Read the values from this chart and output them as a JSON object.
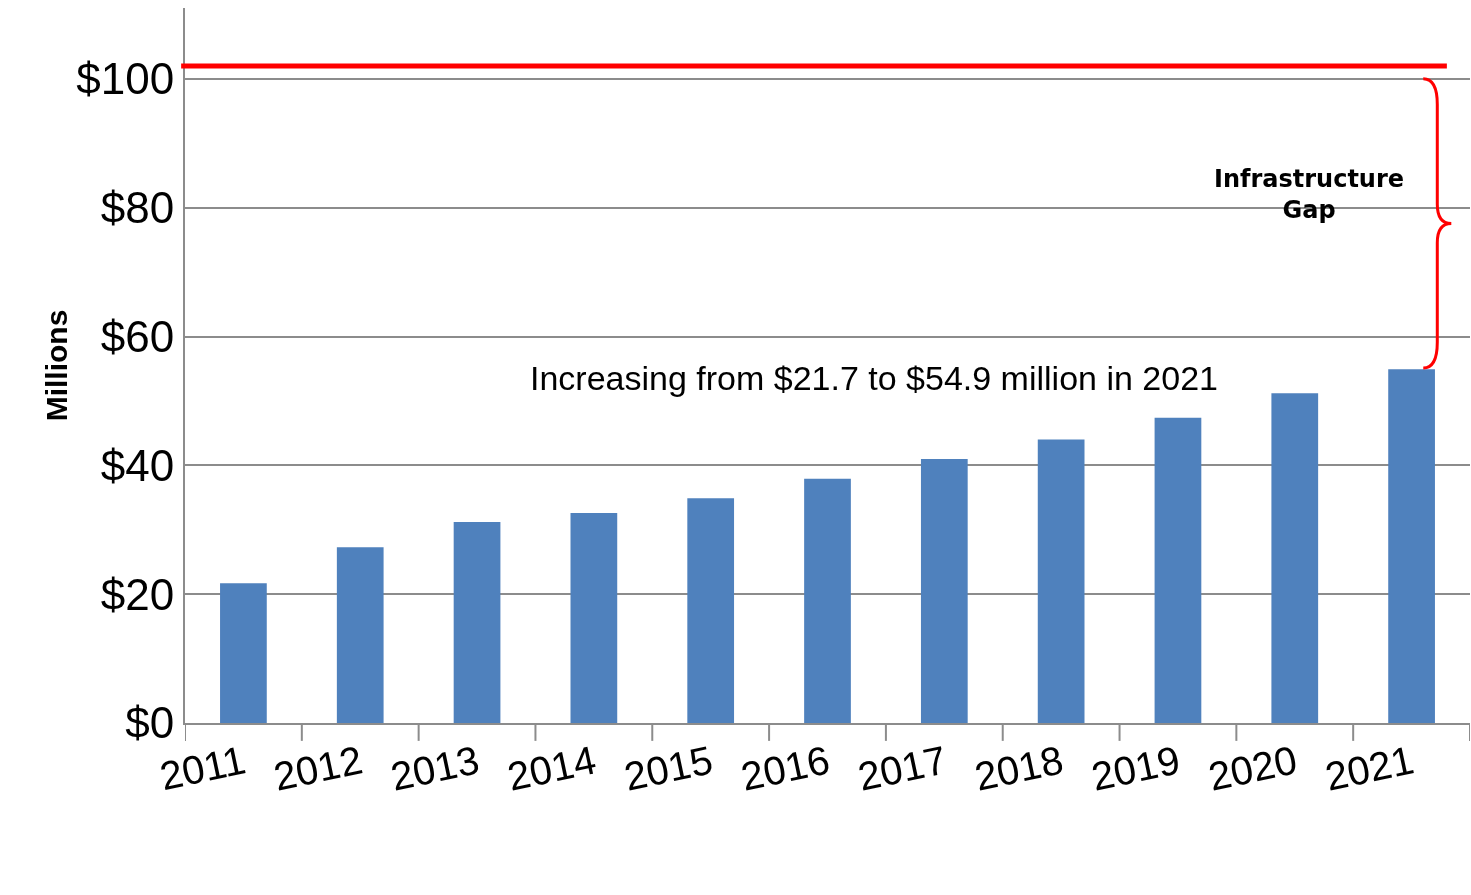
{
  "chart_data": {
    "type": "bar",
    "ylabel": "Millions",
    "categories": [
      "2011",
      "2012",
      "2013",
      "2014",
      "2015",
      "2016",
      "2017",
      "2018",
      "2019",
      "2020",
      "2021"
    ],
    "values": [
      21.7,
      27.3,
      31.2,
      32.6,
      34.9,
      37.9,
      41.0,
      44.0,
      47.4,
      51.2,
      54.9
    ],
    "color": "#4f81bd",
    "ylim": [
      0,
      111
    ],
    "yticks": [
      {
        "value": 0,
        "label": "$0"
      },
      {
        "value": 20,
        "label": "$20"
      },
      {
        "value": 40,
        "label": "$40"
      },
      {
        "value": 60,
        "label": "$60"
      },
      {
        "value": 80,
        "label": "$80"
      },
      {
        "value": 100,
        "label": "$100"
      }
    ],
    "grid": "y",
    "ref_lines": [
      {
        "axis": "y",
        "value": 102,
        "color": "#ff0000",
        "line_style": "solid"
      }
    ],
    "annotations": [
      "Increasing from $21.7 to $54.9 million in 2021",
      "Infrastructure\nGap"
    ]
  }
}
